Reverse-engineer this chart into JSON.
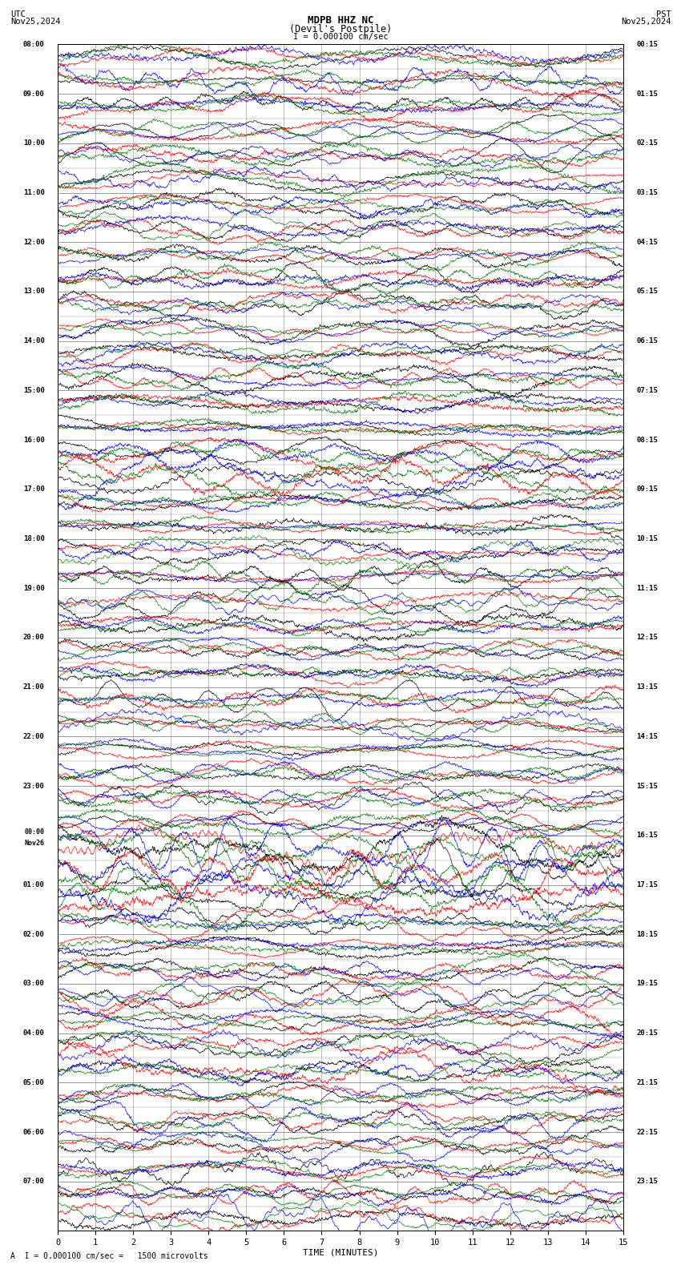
{
  "title_line1": "MDPB HHZ NC",
  "title_line2": "(Devil's Postpile)",
  "scale_label": "I = 0.000100 cm/sec",
  "utc_label": "UTC\nNov25,2024",
  "pst_label": "PST\nNov25,2024",
  "bottom_label": "A  I = 0.000100 cm/sec =   1500 microvolts",
  "xlabel": "TIME (MINUTES)",
  "left_times": [
    "08:00",
    "",
    "09:00",
    "",
    "10:00",
    "",
    "11:00",
    "",
    "12:00",
    "",
    "13:00",
    "",
    "14:00",
    "",
    "15:00",
    "",
    "16:00",
    "",
    "17:00",
    "",
    "18:00",
    "",
    "19:00",
    "",
    "20:00",
    "",
    "21:00",
    "",
    "22:00",
    "",
    "23:00",
    "",
    "Nov26\n00:00",
    "",
    "01:00",
    "",
    "02:00",
    "",
    "03:00",
    "",
    "04:00",
    "",
    "05:00",
    "",
    "06:00",
    "",
    "07:00",
    ""
  ],
  "right_times": [
    "00:15",
    "",
    "01:15",
    "",
    "02:15",
    "",
    "03:15",
    "",
    "04:15",
    "",
    "05:15",
    "",
    "06:15",
    "",
    "07:15",
    "",
    "08:15",
    "",
    "09:15",
    "",
    "10:15",
    "",
    "11:15",
    "",
    "12:15",
    "",
    "13:15",
    "",
    "14:15",
    "",
    "15:15",
    "",
    "16:15",
    "",
    "17:15",
    "",
    "18:15",
    "",
    "19:15",
    "",
    "20:15",
    "",
    "21:15",
    "",
    "22:15",
    "",
    "23:15",
    ""
  ],
  "n_rows": 48,
  "n_points": 1800,
  "bg_color": "#ffffff",
  "grid_color": "#888888",
  "trace_colors": [
    "black",
    "red",
    "blue",
    "green"
  ],
  "seed": 12345
}
